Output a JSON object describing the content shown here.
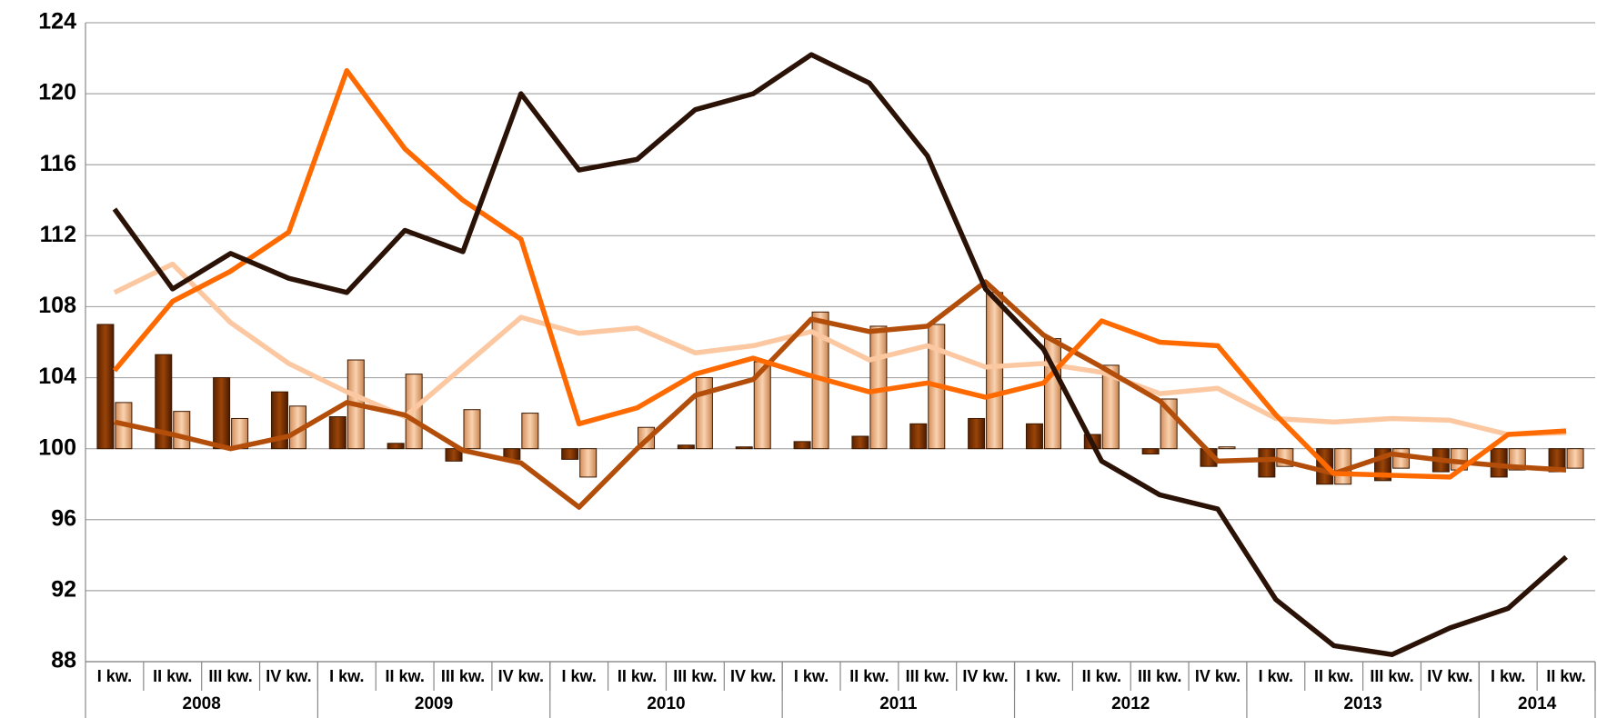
{
  "chart_data": {
    "type": "bar_line",
    "categories": [
      "I kw.",
      "II kw.",
      "III kw.",
      "IV kw.",
      "I kw.",
      "II kw.",
      "III kw.",
      "IV kw.",
      "I kw.",
      "II kw.",
      "III kw.",
      "IV kw.",
      "I kw.",
      "II kw.",
      "III kw.",
      "IV kw.",
      "I kw.",
      "II kw.",
      "III kw.",
      "IV kw.",
      "I kw.",
      "II kw.",
      "III kw.",
      "IV kw.",
      "I kw.",
      "II kw."
    ],
    "x_groups": [
      {
        "label": "2008",
        "size": 4
      },
      {
        "label": "2009",
        "size": 4
      },
      {
        "label": "2010",
        "size": 4
      },
      {
        "label": "2011",
        "size": 4
      },
      {
        "label": "2012",
        "size": 4
      },
      {
        "label": "2013",
        "size": 4
      },
      {
        "label": "2014",
        "size": 2
      }
    ],
    "ylim": [
      88,
      124
    ],
    "yticks": [
      88,
      92,
      96,
      100,
      104,
      108,
      112,
      116,
      120,
      124
    ],
    "grid": true,
    "bar_base": 100,
    "bars": [
      {
        "color": "#7a3300",
        "values": [
          107.0,
          105.3,
          104.0,
          103.2,
          101.8,
          100.3,
          99.3,
          99.4,
          99.4,
          100.0,
          100.2,
          100.1,
          100.4,
          100.7,
          101.4,
          101.7,
          101.4,
          100.8,
          99.7,
          99.0,
          98.4,
          98.0,
          98.2,
          98.7,
          98.4,
          98.7
        ]
      },
      {
        "color": "#f0b07e",
        "values": [
          102.6,
          102.1,
          101.7,
          102.4,
          105.0,
          104.2,
          102.2,
          102.0,
          98.4,
          101.2,
          104.0,
          104.9,
          107.7,
          106.9,
          107.0,
          108.8,
          106.2,
          104.7,
          102.8,
          100.1,
          99.0,
          98.0,
          98.9,
          98.8,
          98.8,
          98.9
        ]
      }
    ],
    "series": [
      {
        "color": "#fcc8a2",
        "values": [
          108.8,
          110.4,
          107.1,
          104.8,
          103.2,
          101.8,
          104.6,
          107.4,
          106.5,
          106.8,
          105.4,
          105.8,
          106.6,
          105.0,
          105.8,
          104.6,
          104.8,
          104.3,
          103.1,
          103.4,
          101.7,
          101.5,
          101.7,
          101.6,
          100.8,
          100.9
        ]
      },
      {
        "color": "#b34d0a",
        "values": [
          101.5,
          100.8,
          100.0,
          100.7,
          102.6,
          101.9,
          99.9,
          99.2,
          96.7,
          100.0,
          103.0,
          103.9,
          107.3,
          106.6,
          106.9,
          109.4,
          106.4,
          104.6,
          102.7,
          99.3,
          99.4,
          98.6,
          99.7,
          99.3,
          99.0,
          98.8
        ]
      },
      {
        "color": "#ff6a00",
        "values": [
          104.4,
          108.3,
          110.0,
          112.2,
          121.3,
          116.9,
          114.0,
          111.8,
          101.4,
          102.3,
          104.2,
          105.1,
          104.1,
          103.2,
          103.7,
          102.9,
          103.7,
          107.2,
          106.0,
          105.8,
          101.9,
          98.6,
          98.5,
          98.4,
          100.8,
          101.0
        ]
      },
      {
        "color": "#2b1206",
        "values": [
          113.5,
          109.0,
          111.0,
          109.6,
          108.8,
          112.3,
          111.1,
          120.0,
          115.7,
          116.3,
          119.1,
          120.0,
          122.2,
          120.6,
          116.5,
          109.0,
          105.6,
          99.3,
          97.4,
          96.6,
          91.5,
          88.9,
          88.4,
          89.9,
          91.0,
          93.9
        ]
      }
    ]
  }
}
